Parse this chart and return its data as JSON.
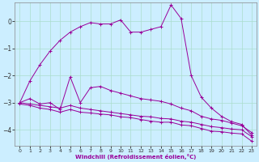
{
  "background_color": "#cceeff",
  "grid_color": "#aaddcc",
  "line_color": "#990099",
  "xlabel": "Windchill (Refroidissement éolien,°C)",
  "xlim": [
    -0.5,
    23.5
  ],
  "ylim": [
    -4.6,
    0.7
  ],
  "yticks": [
    0,
    -1,
    -2,
    -3,
    -4
  ],
  "xticks": [
    0,
    1,
    2,
    3,
    4,
    5,
    6,
    7,
    8,
    9,
    10,
    11,
    12,
    13,
    14,
    15,
    16,
    17,
    18,
    19,
    20,
    21,
    22,
    23
  ],
  "series": [
    {
      "x": [
        0,
        1,
        2,
        3,
        4,
        5,
        6,
        7,
        8,
        9,
        10,
        11,
        12,
        13,
        14,
        15,
        16,
        17,
        18,
        19,
        20,
        21,
        22,
        23
      ],
      "y": [
        -3.0,
        -2.2,
        -1.6,
        -1.1,
        -0.7,
        -0.4,
        -0.2,
        -0.05,
        -0.1,
        -0.1,
        0.05,
        -0.4,
        -0.4,
        -0.3,
        -0.2,
        0.6,
        0.1,
        -2.0,
        -2.8,
        -3.2,
        -3.5,
        -3.7,
        -3.8,
        -4.2
      ]
    },
    {
      "x": [
        0,
        1,
        2,
        3,
        4,
        5,
        6,
        7,
        8,
        9,
        10,
        11,
        12,
        13,
        14,
        15,
        16,
        17,
        18,
        19,
        20,
        21,
        22,
        23
      ],
      "y": [
        -3.0,
        -2.85,
        -3.05,
        -3.0,
        -3.25,
        -2.05,
        -3.0,
        -2.45,
        -2.4,
        -2.55,
        -2.65,
        -2.75,
        -2.85,
        -2.9,
        -2.95,
        -3.05,
        -3.2,
        -3.3,
        -3.5,
        -3.6,
        -3.65,
        -3.75,
        -3.85,
        -4.1
      ]
    },
    {
      "x": [
        0,
        1,
        2,
        3,
        4,
        5,
        6,
        7,
        8,
        9,
        10,
        11,
        12,
        13,
        14,
        15,
        16,
        17,
        18,
        19,
        20,
        21,
        22,
        23
      ],
      "y": [
        -3.0,
        -3.05,
        -3.1,
        -3.15,
        -3.2,
        -3.1,
        -3.2,
        -3.25,
        -3.3,
        -3.35,
        -3.4,
        -3.45,
        -3.5,
        -3.52,
        -3.58,
        -3.6,
        -3.68,
        -3.72,
        -3.8,
        -3.88,
        -3.92,
        -3.97,
        -4.0,
        -4.25
      ]
    },
    {
      "x": [
        0,
        1,
        2,
        3,
        4,
        5,
        6,
        7,
        8,
        9,
        10,
        11,
        12,
        13,
        14,
        15,
        16,
        17,
        18,
        19,
        20,
        21,
        22,
        23
      ],
      "y": [
        -3.05,
        -3.1,
        -3.2,
        -3.25,
        -3.35,
        -3.25,
        -3.35,
        -3.38,
        -3.42,
        -3.45,
        -3.52,
        -3.55,
        -3.62,
        -3.68,
        -3.72,
        -3.72,
        -3.82,
        -3.85,
        -3.95,
        -4.05,
        -4.07,
        -4.12,
        -4.15,
        -4.42
      ]
    }
  ]
}
